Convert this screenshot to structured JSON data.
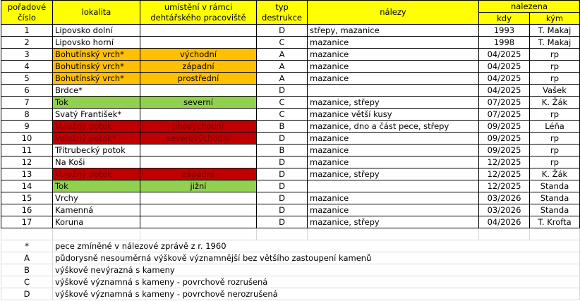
{
  "table": {
    "headers": [
      "pořadové\nčíslo",
      "lokalita",
      "umístění v rámci\ndehtářského pracoviště",
      "typ\ndestrukce",
      "nálezy",
      "nalezena"
    ],
    "subheaders": [
      "kdy",
      "kým"
    ],
    "rows": [
      {
        "cells": [
          "1",
          "Lipovsko dolní",
          null,
          "D",
          "střepy, mazanice",
          "1993",
          "T. Makaj"
        ]
      },
      {
        "cells": [
          "2",
          "Lipovsko horní",
          null,
          "C",
          "mazanice",
          "1998",
          "T. Makaj"
        ]
      },
      {
        "cells": [
          "3",
          "Bohutínský vrch*",
          "východní",
          "A",
          "mazanice",
          "04/2025",
          "rp"
        ],
        "fill": "#ffc000"
      },
      {
        "cells": [
          "4",
          "Bohutínský vrch*",
          "západní",
          "A",
          "mazanice",
          "04/2025",
          "rp"
        ],
        "fill": "#ffc000"
      },
      {
        "cells": [
          "5",
          "Bohutínský vrch*",
          "prostřední",
          "A",
          "mazanice",
          "04/2025",
          "rp"
        ],
        "fill": "#ffc000"
      },
      {
        "cells": [
          "6",
          "Brdce*",
          null,
          "D",
          null,
          "04/2025",
          "Vašek"
        ]
      },
      {
        "cells": [
          "7",
          "Tok",
          "severní",
          "C",
          "mazanice, střepy",
          "07/2025",
          "K. Žák"
        ],
        "fill": "#92d050"
      },
      {
        "cells": [
          "8",
          "Svatý František*",
          null,
          "C",
          "mazanice větší kusy",
          "07/2025",
          "rp"
        ]
      },
      {
        "cells": [
          "9",
          "Voložný potok",
          "jihovýchodní",
          "B",
          "mazanice, dno a část pece, střepy",
          "09/2025",
          "Léňa"
        ],
        "fill": "#c00000",
        "text_color": "#7a0000"
      },
      {
        "cells": [
          "10",
          "Voložný potok*",
          "severovýchodní",
          "D",
          "mazanice",
          "09/2025",
          "rp"
        ],
        "fill": "#c00000",
        "text_color": "#7a0000"
      },
      {
        "cells": [
          "11",
          "Třítrubecký potok",
          null,
          "B",
          "mazanice",
          "09/2025",
          "rp"
        ]
      },
      {
        "cells": [
          "12",
          "Na Koši",
          null,
          "D",
          "mazanice",
          "12/2025",
          "rp"
        ]
      },
      {
        "cells": [
          "13",
          "Voložný potok",
          "západní",
          "D",
          "mazanice, střepy",
          "12/2025",
          "K. Žák"
        ],
        "fill": "#c00000",
        "text_color": "#7a0000"
      },
      {
        "cells": [
          "14",
          "Tok",
          "jižní",
          "D",
          null,
          "12/2025",
          "Standa"
        ],
        "fill": "#92d050"
      },
      {
        "cells": [
          "15",
          "Vrchy",
          null,
          "D",
          "mazanice",
          "03/2026",
          "Standa"
        ]
      },
      {
        "cells": [
          "16",
          "Kamenná",
          null,
          "D",
          "mazanice",
          "03/2026",
          "Standa"
        ]
      },
      {
        "cells": [
          "17",
          "Koruna",
          null,
          "D",
          "mazanice, střepy",
          "04/2026",
          "T. Krofta"
        ]
      }
    ]
  },
  "legend": [
    [
      "*",
      "pece zmíněné v nálezové zprávě z r. 1960"
    ],
    [
      "A",
      "půdorysně nesouměrná výškově významnější bez většího zastoupení kamenů"
    ],
    [
      "B",
      "výškově nevýrazná s kameny"
    ],
    [
      "C",
      "výškově významná s kameny - povrchově rozrušená"
    ],
    [
      "D",
      "výškově významná s kameny - povrchově nerozrušená"
    ]
  ]
}
